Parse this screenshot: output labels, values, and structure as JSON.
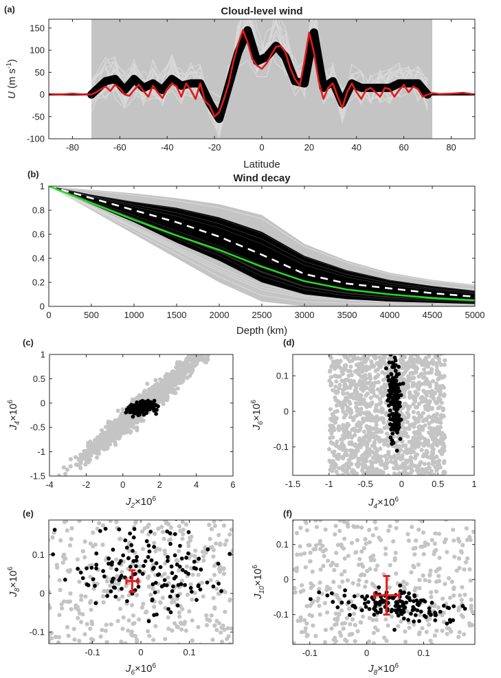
{
  "chart_data": [
    {
      "id": "a",
      "tag": "(a)",
      "type": "line",
      "title": "Cloud-level wind",
      "xlabel": "Latitude",
      "ylabel": "U (m s-1)",
      "xlim": [
        -90,
        90
      ],
      "ylim": [
        -100,
        170
      ],
      "xticks": [
        -80,
        -60,
        -40,
        -20,
        0,
        20,
        40,
        60,
        80
      ],
      "yticks": [
        -100,
        -50,
        0,
        50,
        100,
        150
      ],
      "grid": false,
      "colors": {
        "ensemble": "#c4c4c4",
        "solutions": "#000000",
        "observed": "#e41a1c"
      },
      "series": [
        {
          "role": "observed",
          "color": "#e41a1c",
          "x": [
            -90,
            -85,
            -80,
            -75,
            -72,
            -70,
            -68,
            -66,
            -64,
            -62,
            -60,
            -58,
            -56,
            -54,
            -52,
            -50,
            -48,
            -46,
            -44,
            -42,
            -40,
            -38,
            -36,
            -34,
            -32,
            -30,
            -28,
            -26,
            -24,
            -22,
            -20,
            -18,
            -16,
            -14,
            -12,
            -10,
            -8,
            -6,
            -4,
            -2,
            0,
            2,
            4,
            6,
            8,
            10,
            12,
            14,
            16,
            18,
            20,
            22,
            24,
            26,
            28,
            30,
            32,
            34,
            36,
            38,
            40,
            42,
            44,
            46,
            48,
            50,
            52,
            54,
            56,
            58,
            60,
            62,
            64,
            66,
            68,
            70,
            72,
            75,
            80,
            85,
            90
          ],
          "y": [
            1,
            0,
            2,
            0,
            0,
            5,
            12,
            18,
            8,
            22,
            14,
            0,
            -3,
            10,
            22,
            8,
            -5,
            20,
            5,
            -8,
            12,
            25,
            18,
            -5,
            25,
            10,
            -10,
            25,
            -15,
            -25,
            -50,
            -40,
            -10,
            25,
            75,
            115,
            145,
            118,
            80,
            65,
            58,
            70,
            90,
            108,
            110,
            95,
            60,
            35,
            20,
            75,
            140,
            95,
            30,
            -10,
            15,
            25,
            -5,
            -30,
            5,
            25,
            5,
            -10,
            10,
            15,
            5,
            -5,
            15,
            12,
            -5,
            10,
            22,
            5,
            18,
            12,
            -5,
            0,
            3,
            1,
            2,
            4,
            0
          ]
        },
        {
          "role": "solutions-band",
          "color": "#000000",
          "x": [
            -72,
            -66,
            -62,
            -58,
            -54,
            -50,
            -46,
            -42,
            -38,
            -34,
            -30,
            -26,
            -22,
            -18,
            -14,
            -10,
            -6,
            -2,
            2,
            6,
            10,
            14,
            18,
            22,
            26,
            30,
            34,
            38,
            42,
            46,
            50,
            54,
            58,
            62,
            66,
            70
          ],
          "y": [
            0,
            30,
            35,
            10,
            35,
            15,
            25,
            10,
            35,
            20,
            25,
            25,
            -20,
            -55,
            20,
            95,
            145,
            75,
            85,
            110,
            85,
            30,
            25,
            140,
            15,
            30,
            -20,
            25,
            15,
            15,
            15,
            15,
            25,
            25,
            25,
            0
          ]
        },
        {
          "role": "ensemble-envelope",
          "color": "#c4c4c4",
          "x": [
            -72,
            72
          ],
          "y": [
            -100,
            170
          ]
        }
      ]
    },
    {
      "id": "b",
      "tag": "(b)",
      "type": "line",
      "title": "Wind decay",
      "xlabel": "Depth (km)",
      "ylabel": "",
      "xlim": [
        0,
        5000
      ],
      "ylim": [
        0,
        1
      ],
      "xticks": [
        0,
        500,
        1000,
        1500,
        2000,
        2500,
        3000,
        3500,
        4000,
        4500,
        5000
      ],
      "yticks": [
        0,
        0.2,
        0.4,
        0.6,
        0.8,
        1
      ],
      "grid": false,
      "colors": {
        "ensemble": "#c4c4c4",
        "solutions": "#000000",
        "best": "#22dd22",
        "mean": "#ffffff"
      },
      "series": [
        {
          "role": "best-fit",
          "color": "#22dd22",
          "x": [
            0,
            500,
            1000,
            1500,
            2000,
            2500,
            3000,
            3500,
            4000,
            4500,
            5000
          ],
          "y": [
            1,
            0.86,
            0.72,
            0.59,
            0.47,
            0.33,
            0.21,
            0.14,
            0.1,
            0.07,
            0.05
          ]
        },
        {
          "role": "mean",
          "color": "#ffffff",
          "dashed": true,
          "x": [
            0,
            500,
            1000,
            1500,
            2000,
            2500,
            3000,
            3500,
            4000,
            4500,
            5000
          ],
          "y": [
            1,
            0.9,
            0.8,
            0.7,
            0.58,
            0.43,
            0.27,
            0.19,
            0.15,
            0.11,
            0.08
          ]
        },
        {
          "role": "solutions-upper",
          "color": "#000000",
          "x": [
            0,
            500,
            1000,
            1500,
            2000,
            2500,
            3000,
            3500,
            4000,
            4500,
            5000
          ],
          "y": [
            1,
            0.93,
            0.87,
            0.82,
            0.74,
            0.62,
            0.42,
            0.3,
            0.22,
            0.17,
            0.13
          ]
        },
        {
          "role": "solutions-lower",
          "color": "#000000",
          "x": [
            0,
            500,
            1000,
            1500,
            2000,
            2500,
            3000,
            3500,
            4000,
            4500,
            5000
          ],
          "y": [
            1,
            0.85,
            0.7,
            0.53,
            0.38,
            0.2,
            0.1,
            0.06,
            0.04,
            0.03,
            0.02
          ]
        },
        {
          "role": "ensemble-upper",
          "color": "#c4c4c4",
          "x": [
            0,
            500,
            1000,
            1500,
            2000,
            2500,
            3000,
            3500,
            4000,
            4500,
            5000
          ],
          "y": [
            1,
            0.97,
            0.94,
            0.9,
            0.85,
            0.76,
            0.52,
            0.38,
            0.28,
            0.22,
            0.18
          ]
        },
        {
          "role": "ensemble-lower",
          "color": "#c4c4c4",
          "x": [
            0,
            500,
            1000,
            1500,
            2000,
            2500,
            3000,
            3500,
            4000,
            4500,
            5000
          ],
          "y": [
            1,
            0.8,
            0.6,
            0.4,
            0.2,
            0.04,
            0,
            0,
            0,
            0,
            0
          ]
        }
      ]
    },
    {
      "id": "c",
      "tag": "(c)",
      "type": "scatter",
      "xlabel": "J2×10^6",
      "ylabel": "J4×10^6",
      "xlim": [
        -4,
        6
      ],
      "ylim": [
        -1.5,
        1
      ],
      "xticks": [
        -4,
        -2,
        0,
        2,
        4,
        6
      ],
      "yticks": [
        -1.5,
        -1,
        -0.5,
        0,
        0.5,
        1
      ],
      "grid": false,
      "colors": {
        "ensemble": "#c4c4c4",
        "solutions": "#000000"
      },
      "clouds": [
        {
          "role": "ensemble",
          "color": "#c4c4c4",
          "n": 1600,
          "cx": 1,
          "cy": -0.1,
          "sx": 1.45,
          "sy": 0.12,
          "rho": 0.93,
          "along": true
        },
        {
          "role": "solutions",
          "color": "#000000",
          "n": 160,
          "cx": 1.0,
          "cy": -0.1,
          "sx": 0.32,
          "sy": 0.07,
          "rho": 0.15
        }
      ]
    },
    {
      "id": "d",
      "tag": "(d)",
      "type": "scatter",
      "xlabel": "J4×10^6",
      "ylabel": "J6×10^6",
      "xlim": [
        -1.5,
        1
      ],
      "ylim": [
        -0.18,
        0.16
      ],
      "xticks": [
        -1.5,
        -1,
        -0.5,
        0,
        0.5,
        1
      ],
      "yticks": [
        -0.1,
        0,
        0.1
      ],
      "grid": false,
      "colors": {
        "ensemble": "#c4c4c4",
        "solutions": "#000000"
      },
      "clouds": [
        {
          "role": "ensemble",
          "color": "#c4c4c4",
          "n": 1500,
          "cx": -0.2,
          "cy": 0,
          "sx": 0.42,
          "sy": 0.1,
          "rho": 0.0
        },
        {
          "role": "solutions",
          "color": "#000000",
          "n": 160,
          "cx": -0.1,
          "cy": 0.03,
          "sx": 0.05,
          "sy": 0.06,
          "rho": 0.0
        }
      ]
    },
    {
      "id": "e",
      "tag": "(e)",
      "type": "scatter",
      "xlabel": "J6×10^6",
      "ylabel": "J8×10^6",
      "xlim": [
        -0.19,
        0.19
      ],
      "ylim": [
        -0.13,
        0.19
      ],
      "xticks": [
        -0.1,
        0,
        0.1
      ],
      "yticks": [
        -0.1,
        0,
        0.1
      ],
      "grid": false,
      "colors": {
        "ensemble": "#c4c4c4",
        "solutions": "#000000",
        "observed": "#e41a1c"
      },
      "clouds": [
        {
          "role": "ensemble",
          "color": "#c4c4c4",
          "n": 1400,
          "cx": 0,
          "cy": 0.03,
          "sx": 0.2,
          "sy": 0.16,
          "rho": 0.0
        },
        {
          "role": "solutions",
          "color": "#000000",
          "n": 150,
          "cx": 0.02,
          "cy": 0.05,
          "sx": 0.08,
          "sy": 0.055,
          "rho": -0.2
        }
      ],
      "observed": {
        "x": -0.018,
        "y": 0.032,
        "xerr": 0.012,
        "yerr": 0.028
      }
    },
    {
      "id": "f",
      "tag": "(f)",
      "type": "scatter",
      "xlabel": "J8×10^6",
      "ylabel": "J10×10^6",
      "xlim": [
        -0.13,
        0.19
      ],
      "ylim": [
        -0.185,
        0.17
      ],
      "xticks": [
        -0.1,
        0,
        0.1
      ],
      "yticks": [
        -0.1,
        0,
        0.1
      ],
      "grid": false,
      "colors": {
        "ensemble": "#c4c4c4",
        "solutions": "#000000",
        "observed": "#e41a1c"
      },
      "clouds": [
        {
          "role": "ensemble",
          "color": "#c4c4c4",
          "n": 1400,
          "cx": 0.03,
          "cy": 0,
          "sx": 0.16,
          "sy": 0.18,
          "rho": 0.0
        },
        {
          "role": "solutions",
          "color": "#000000",
          "n": 150,
          "cx": 0.05,
          "cy": -0.075,
          "sx": 0.055,
          "sy": 0.025,
          "rho": -0.45
        }
      ],
      "observed": {
        "x": 0.035,
        "y": -0.045,
        "xerr": 0.022,
        "yerr": 0.055
      }
    }
  ]
}
